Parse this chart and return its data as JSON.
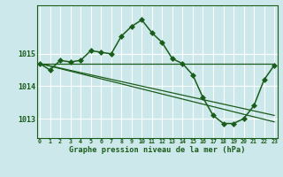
{
  "bg_color": "#cce8ea",
  "grid_color": "#ffffff",
  "line_color": "#1a5c1a",
  "title": "Graphe pression niveau de la mer (hPa)",
  "xlabel_hours": [
    0,
    1,
    2,
    3,
    4,
    5,
    6,
    7,
    8,
    9,
    10,
    11,
    12,
    13,
    14,
    15,
    16,
    17,
    18,
    19,
    20,
    21,
    22,
    23
  ],
  "yticks": [
    1013,
    1014,
    1015
  ],
  "ylim": [
    1012.4,
    1016.5
  ],
  "xlim": [
    -0.3,
    23.3
  ],
  "series": [
    {
      "x": [
        0,
        1,
        2,
        3,
        4,
        5,
        6,
        7,
        8,
        9,
        10,
        11,
        12,
        13,
        14,
        15,
        16,
        17,
        18,
        19,
        20,
        21,
        22,
        23
      ],
      "y": [
        1014.7,
        1014.5,
        1014.8,
        1014.75,
        1014.8,
        1015.1,
        1015.05,
        1015.0,
        1015.55,
        1015.85,
        1016.05,
        1015.65,
        1015.35,
        1014.85,
        1014.7,
        1014.35,
        1013.65,
        1013.1,
        1012.85,
        1012.85,
        1013.0,
        1013.4,
        1014.2,
        1014.65
      ],
      "marker": "D",
      "markersize": 3.0,
      "linewidth": 1.1,
      "has_marker": true
    },
    {
      "x": [
        0,
        23
      ],
      "y": [
        1014.7,
        1014.7
      ],
      "marker": null,
      "markersize": 0,
      "linewidth": 0.9,
      "has_marker": false
    },
    {
      "x": [
        0,
        23
      ],
      "y": [
        1014.7,
        1013.1
      ],
      "marker": null,
      "markersize": 0,
      "linewidth": 0.9,
      "has_marker": false
    },
    {
      "x": [
        0,
        23
      ],
      "y": [
        1014.7,
        1012.9
      ],
      "marker": null,
      "markersize": 0,
      "linewidth": 0.9,
      "has_marker": false
    }
  ]
}
